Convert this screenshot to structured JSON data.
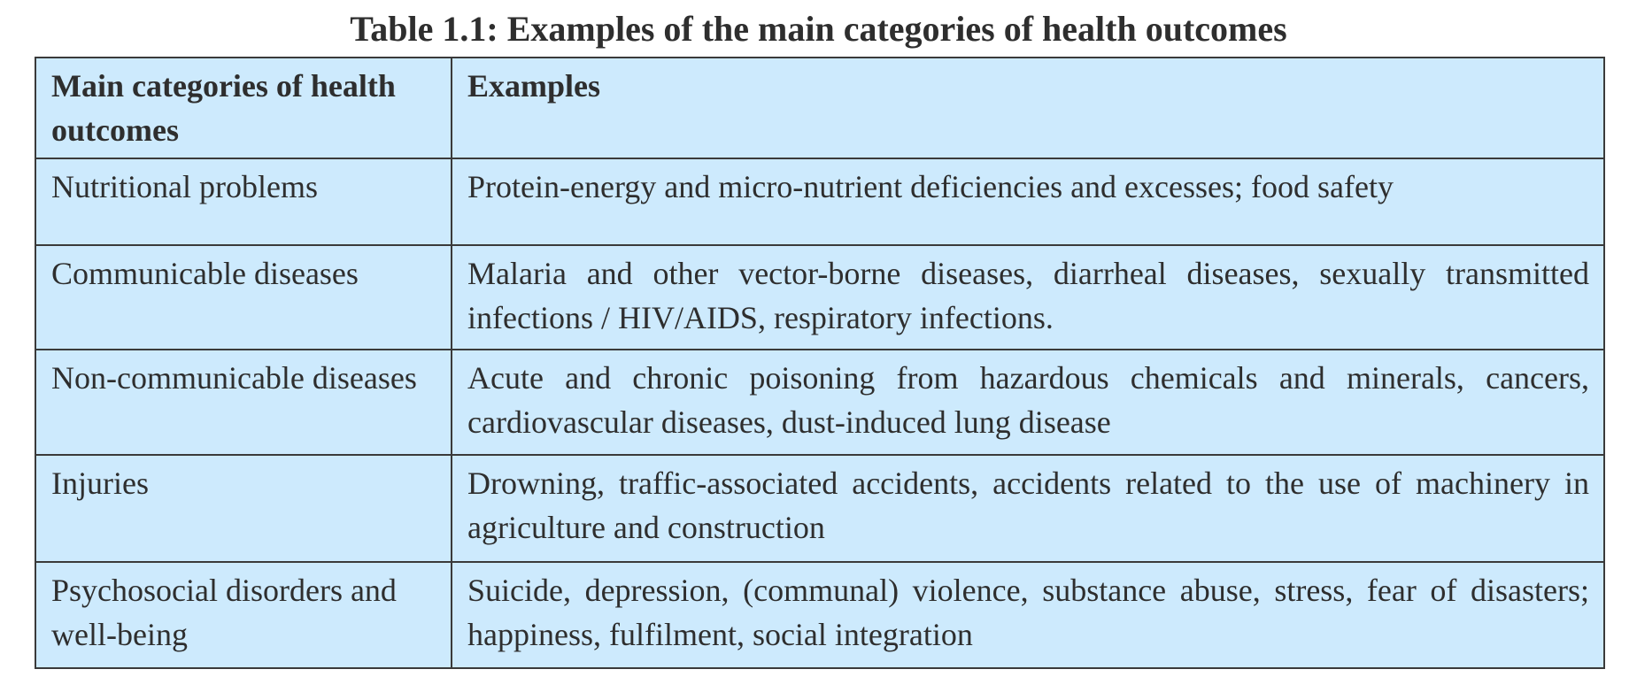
{
  "caption": "Table 1.1: Examples of the main categories of health outcomes",
  "table": {
    "headers": [
      "Main categories of health outcomes",
      "Examples"
    ],
    "rows": [
      {
        "category": "Nutritional problems",
        "examples": "Protein-energy and micro-nutrient deficiencies and excesses; food safety"
      },
      {
        "category": "Communicable diseases",
        "examples": "Malaria and other vector-borne diseases, diarrheal diseases, sexually trans­mitted infections / HIV/AIDS, respiratory infections."
      },
      {
        "category": "Non-communicable diseases",
        "examples": "Acute and chronic poisoning from hazardous chemicals and minerals, can­cers, cardiovascular diseases, dust-induced lung disease"
      },
      {
        "category": "Injuries",
        "examples": "Drowning, traffic-associated accidents, accidents related to the use of machin­ery in agriculture and construction"
      },
      {
        "category": "Psychosocial disorders and well-being",
        "examples": "Suicide, depression, (communal) violence, substance abuse, stress, fear of dis­asters; happiness, fulfilment, social integration"
      }
    ]
  },
  "colors": {
    "cell_background": "#cdeafd",
    "border": "#3a3a3a",
    "text": "#2e2e2e"
  }
}
